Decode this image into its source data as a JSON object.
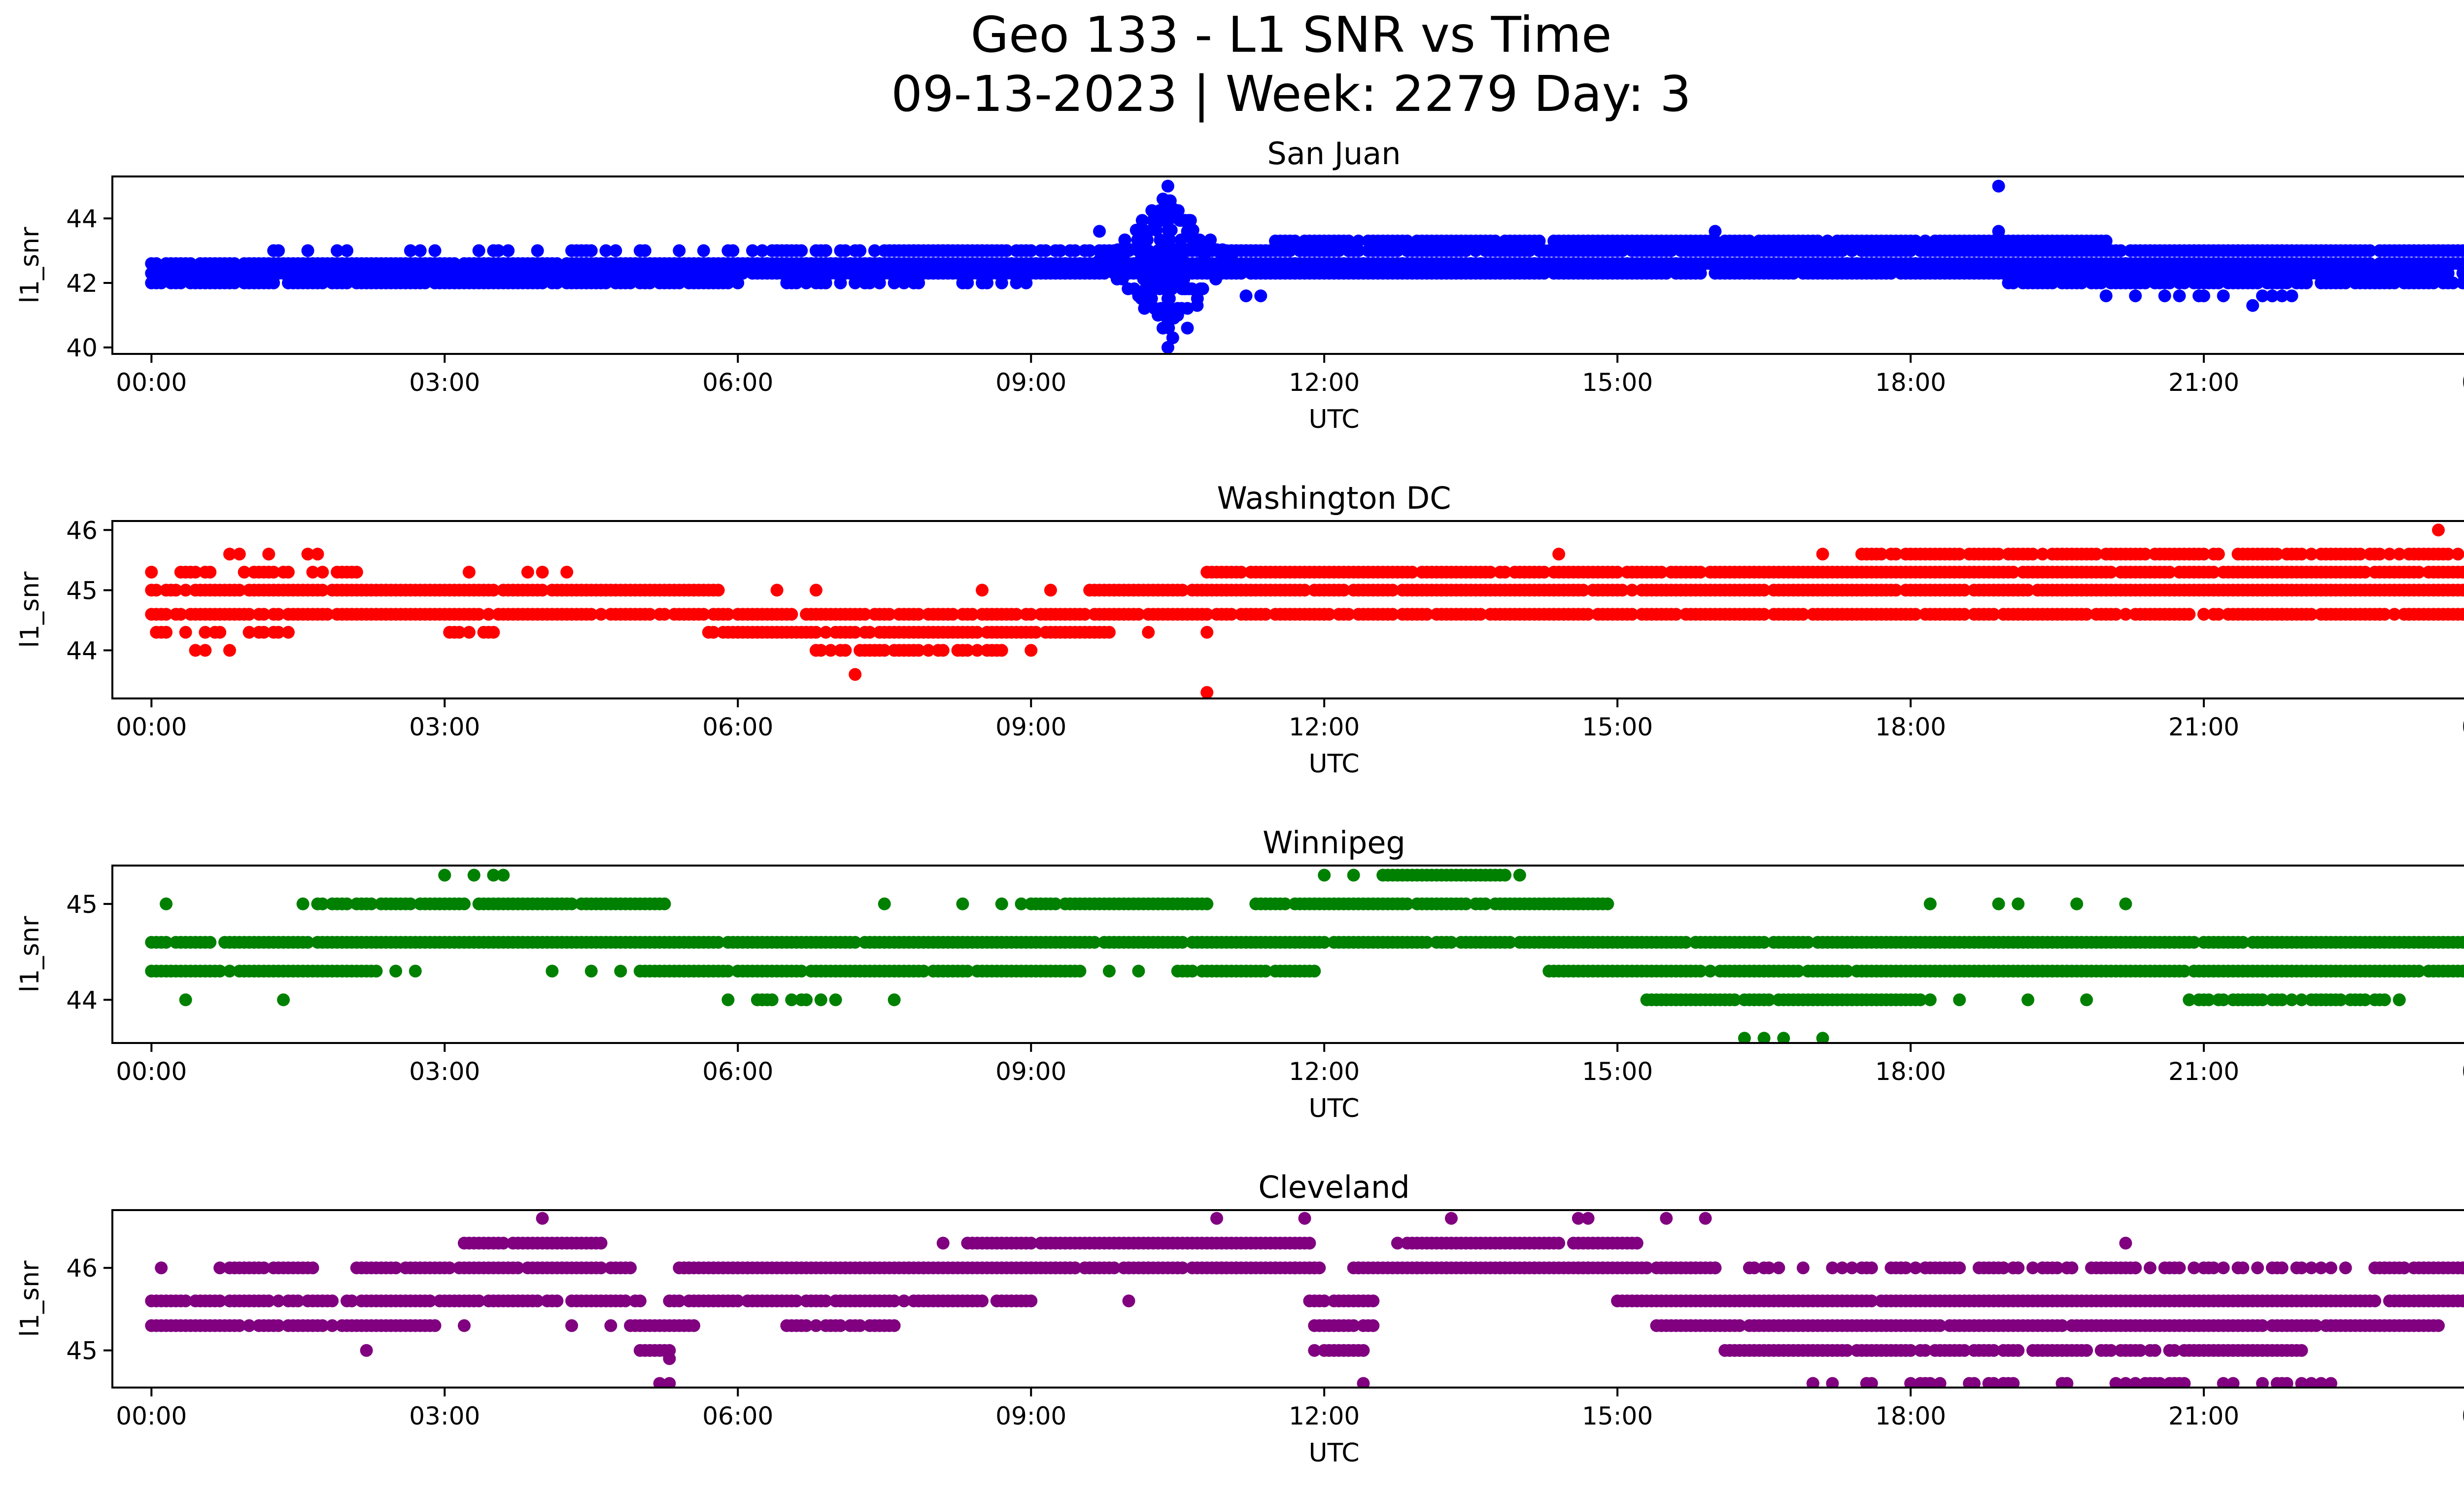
{
  "figure": {
    "title_line1": "Geo 133 - L1 SNR vs Time",
    "title_line2": "09-13-2023 | Week: 2279 Day: 3"
  },
  "chart_data": [
    {
      "type": "scatter",
      "title": "San Juan",
      "xlabel": "UTC",
      "ylabel": "l1_snr",
      "color": "#0000ff",
      "x_ticks": [
        "00:00",
        "03:00",
        "06:00",
        "09:00",
        "12:00",
        "15:00",
        "18:00",
        "21:00",
        "00:00"
      ],
      "xlim": [
        -0.4,
        24.6
      ],
      "ylim": [
        39.8,
        45.3
      ],
      "y_ticks": [
        40,
        42,
        44
      ],
      "bands": [
        {
          "level": 42.0,
          "from": 0.0,
          "to": 6.0,
          "density": 0.85
        },
        {
          "level": 42.3,
          "from": 0.0,
          "to": 24.0,
          "density": 0.95
        },
        {
          "level": 42.6,
          "from": 0.0,
          "to": 24.0,
          "density": 0.95
        },
        {
          "level": 43.0,
          "from": 1.0,
          "to": 8.5,
          "density": 0.25
        },
        {
          "level": 42.0,
          "from": 6.5,
          "to": 9.0,
          "density": 0.35
        },
        {
          "level": 43.0,
          "from": 6.2,
          "to": 11.5,
          "density": 0.8
        },
        {
          "level": 43.3,
          "from": 11.5,
          "to": 20.0,
          "density": 0.9
        },
        {
          "level": 43.0,
          "from": 11.0,
          "to": 24.0,
          "density": 0.95
        },
        {
          "level": 42.6,
          "from": 11.0,
          "to": 24.0,
          "density": 0.9
        },
        {
          "level": 42.0,
          "from": 19.0,
          "to": 24.0,
          "density": 0.85
        },
        {
          "level": 41.6,
          "from": 20.2,
          "to": 22.0,
          "density": 0.3
        },
        {
          "level": 43.3,
          "from": 23.8,
          "to": 24.0,
          "density": 0.9
        }
      ],
      "points": [
        {
          "x": 10.4,
          "y": 45.0
        },
        {
          "x": 10.35,
          "y": 44.6
        },
        {
          "x": 10.45,
          "y": 44.3
        },
        {
          "x": 10.3,
          "y": 44.0
        },
        {
          "x": 10.5,
          "y": 44.0
        },
        {
          "x": 10.2,
          "y": 43.6
        },
        {
          "x": 10.6,
          "y": 43.6
        },
        {
          "x": 9.7,
          "y": 43.6
        },
        {
          "x": 10.4,
          "y": 40.0
        },
        {
          "x": 10.45,
          "y": 40.3
        },
        {
          "x": 10.6,
          "y": 40.6
        },
        {
          "x": 10.35,
          "y": 40.6
        },
        {
          "x": 10.5,
          "y": 41.0
        },
        {
          "x": 10.3,
          "y": 41.0
        },
        {
          "x": 10.7,
          "y": 41.3
        },
        {
          "x": 10.2,
          "y": 41.3
        },
        {
          "x": 11.2,
          "y": 41.6
        },
        {
          "x": 11.35,
          "y": 41.6
        },
        {
          "x": 10.1,
          "y": 41.6
        },
        {
          "x": 18.9,
          "y": 45.0
        },
        {
          "x": 18.9,
          "y": 43.6
        },
        {
          "x": 16.0,
          "y": 43.6
        },
        {
          "x": 21.5,
          "y": 41.3
        },
        {
          "x": 21.7,
          "y": 41.6
        },
        {
          "x": 20.0,
          "y": 41.6
        }
      ],
      "burst": {
        "center": 10.4,
        "halfwidth": 0.75,
        "min": 40.3,
        "max": 44.3
      }
    },
    {
      "type": "scatter",
      "title": "Washington DC",
      "xlabel": "UTC",
      "ylabel": "l1_snr",
      "color": "#ff0000",
      "x_ticks": [
        "00:00",
        "03:00",
        "06:00",
        "09:00",
        "12:00",
        "15:00",
        "18:00",
        "21:00",
        "00:00"
      ],
      "xlim": [
        -0.4,
        24.6
      ],
      "ylim": [
        43.2,
        46.15
      ],
      "y_ticks": [
        44,
        45,
        46
      ],
      "bands": [
        {
          "level": 45.3,
          "from": 0.0,
          "to": 2.3,
          "density": 0.55
        },
        {
          "level": 45.0,
          "from": 0.0,
          "to": 5.8,
          "density": 0.95
        },
        {
          "level": 44.6,
          "from": 0.0,
          "to": 24.0,
          "density": 0.9
        },
        {
          "level": 44.3,
          "from": 0.0,
          "to": 1.5,
          "density": 0.3
        },
        {
          "level": 45.3,
          "from": 2.5,
          "to": 4.5,
          "density": 0.15
        },
        {
          "level": 44.3,
          "from": 5.7,
          "to": 9.8,
          "density": 0.95
        },
        {
          "level": 44.0,
          "from": 6.8,
          "to": 8.7,
          "density": 0.8
        },
        {
          "level": 45.0,
          "from": 9.6,
          "to": 24.0,
          "density": 0.95
        },
        {
          "level": 45.3,
          "from": 10.8,
          "to": 24.0,
          "density": 0.95
        },
        {
          "level": 45.6,
          "from": 17.5,
          "to": 23.6,
          "density": 0.85
        },
        {
          "level": 44.3,
          "from": 3.0,
          "to": 3.5,
          "density": 0.5
        }
      ],
      "points": [
        {
          "x": 0.8,
          "y": 45.6
        },
        {
          "x": 0.9,
          "y": 45.6
        },
        {
          "x": 1.2,
          "y": 45.6
        },
        {
          "x": 1.6,
          "y": 45.6
        },
        {
          "x": 1.7,
          "y": 45.6
        },
        {
          "x": 0.45,
          "y": 44.0
        },
        {
          "x": 0.55,
          "y": 44.0
        },
        {
          "x": 0.8,
          "y": 44.0
        },
        {
          "x": 7.2,
          "y": 43.6
        },
        {
          "x": 10.8,
          "y": 43.3
        },
        {
          "x": 14.4,
          "y": 45.6
        },
        {
          "x": 17.1,
          "y": 45.6
        },
        {
          "x": 23.4,
          "y": 46.0
        },
        {
          "x": 9.0,
          "y": 44.0
        },
        {
          "x": 6.4,
          "y": 45.0
        },
        {
          "x": 6.8,
          "y": 45.0
        },
        {
          "x": 8.5,
          "y": 45.0
        },
        {
          "x": 9.2,
          "y": 45.0
        },
        {
          "x": 10.2,
          "y": 44.3
        },
        {
          "x": 10.8,
          "y": 44.3
        },
        {
          "x": 21.0,
          "y": 44.6
        },
        {
          "x": 21.8,
          "y": 44.6
        },
        {
          "x": 22.8,
          "y": 44.6
        },
        {
          "x": 23.1,
          "y": 44.6
        }
      ]
    },
    {
      "type": "scatter",
      "title": "Winnipeg",
      "xlabel": "UTC",
      "ylabel": "l1_snr",
      "color": "#008000",
      "x_ticks": [
        "00:00",
        "03:00",
        "06:00",
        "09:00",
        "12:00",
        "15:00",
        "18:00",
        "21:00",
        "00:00"
      ],
      "xlim": [
        -0.4,
        24.6
      ],
      "ylim": [
        43.55,
        45.4
      ],
      "y_ticks": [
        44,
        45
      ],
      "bands": [
        {
          "level": 44.6,
          "from": 0.0,
          "to": 24.0,
          "density": 0.95
        },
        {
          "level": 44.3,
          "from": 0.0,
          "to": 2.3,
          "density": 0.95
        },
        {
          "level": 45.0,
          "from": 1.7,
          "to": 5.3,
          "density": 0.95
        },
        {
          "level": 44.3,
          "from": 5.0,
          "to": 9.5,
          "density": 0.95
        },
        {
          "level": 45.0,
          "from": 8.9,
          "to": 10.8,
          "density": 0.95
        },
        {
          "level": 44.3,
          "from": 10.5,
          "to": 11.9,
          "density": 0.95
        },
        {
          "level": 45.0,
          "from": 11.3,
          "to": 14.9,
          "density": 0.95
        },
        {
          "level": 45.3,
          "from": 12.6,
          "to": 13.9,
          "density": 0.95
        },
        {
          "level": 44.3,
          "from": 14.3,
          "to": 24.0,
          "density": 0.95
        },
        {
          "level": 44.0,
          "from": 15.3,
          "to": 18.2,
          "density": 0.95
        },
        {
          "level": 44.0,
          "from": 20.8,
          "to": 23.0,
          "density": 0.8
        },
        {
          "level": 44.0,
          "from": 6.2,
          "to": 7.0,
          "density": 0.6
        }
      ],
      "points": [
        {
          "x": 0.15,
          "y": 45.0
        },
        {
          "x": 0.35,
          "y": 44.0
        },
        {
          "x": 1.35,
          "y": 44.0
        },
        {
          "x": 1.55,
          "y": 45.0
        },
        {
          "x": 3.0,
          "y": 45.3
        },
        {
          "x": 3.3,
          "y": 45.3
        },
        {
          "x": 3.5,
          "y": 45.3
        },
        {
          "x": 3.6,
          "y": 45.3
        },
        {
          "x": 4.1,
          "y": 44.3
        },
        {
          "x": 4.5,
          "y": 44.3
        },
        {
          "x": 4.8,
          "y": 44.3
        },
        {
          "x": 7.5,
          "y": 45.0
        },
        {
          "x": 8.3,
          "y": 45.0
        },
        {
          "x": 8.7,
          "y": 45.0
        },
        {
          "x": 5.9,
          "y": 44.0
        },
        {
          "x": 7.6,
          "y": 44.0
        },
        {
          "x": 9.8,
          "y": 44.3
        },
        {
          "x": 10.1,
          "y": 44.3
        },
        {
          "x": 12.0,
          "y": 45.3
        },
        {
          "x": 12.3,
          "y": 45.3
        },
        {
          "x": 14.0,
          "y": 45.3
        },
        {
          "x": 16.3,
          "y": 43.6
        },
        {
          "x": 16.5,
          "y": 43.6
        },
        {
          "x": 16.7,
          "y": 43.6
        },
        {
          "x": 17.1,
          "y": 43.6
        },
        {
          "x": 18.2,
          "y": 45.0
        },
        {
          "x": 18.9,
          "y": 45.0
        },
        {
          "x": 19.1,
          "y": 45.0
        },
        {
          "x": 19.7,
          "y": 45.0
        },
        {
          "x": 20.2,
          "y": 45.0
        },
        {
          "x": 18.5,
          "y": 44.0
        },
        {
          "x": 19.2,
          "y": 44.0
        },
        {
          "x": 19.8,
          "y": 44.0
        },
        {
          "x": 23.0,
          "y": 44.0
        },
        {
          "x": 2.5,
          "y": 44.3
        },
        {
          "x": 2.7,
          "y": 44.3
        },
        {
          "x": 15.8,
          "y": 44.6
        },
        {
          "x": 16.0,
          "y": 44.6
        },
        {
          "x": 17.4,
          "y": 44.6
        }
      ]
    },
    {
      "type": "scatter",
      "title": "Cleveland",
      "xlabel": "UTC",
      "ylabel": "l1_snr",
      "color": "#800080",
      "x_ticks": [
        "00:00",
        "03:00",
        "06:00",
        "09:00",
        "12:00",
        "15:00",
        "18:00",
        "21:00",
        "00:00"
      ],
      "xlim": [
        -0.4,
        24.6
      ],
      "ylim": [
        44.55,
        46.7
      ],
      "y_ticks": [
        45,
        46
      ],
      "y_tick_values": [
        45.0,
        46.0
      ],
      "bands": [
        {
          "level": 45.6,
          "from": 0.0,
          "to": 5.0,
          "density": 0.9
        },
        {
          "level": 45.3,
          "from": 0.0,
          "to": 2.9,
          "density": 0.9
        },
        {
          "level": 46.0,
          "from": 0.7,
          "to": 1.7,
          "density": 0.9
        },
        {
          "level": 46.0,
          "from": 2.1,
          "to": 4.9,
          "density": 0.95
        },
        {
          "level": 46.3,
          "from": 3.2,
          "to": 4.6,
          "density": 0.9
        },
        {
          "level": 46.0,
          "from": 5.4,
          "to": 24.0,
          "density": 0.3
        },
        {
          "level": 46.0,
          "from": 5.4,
          "to": 11.9,
          "density": 0.95
        },
        {
          "level": 45.6,
          "from": 5.3,
          "to": 9.0,
          "density": 0.95
        },
        {
          "level": 46.3,
          "from": 8.3,
          "to": 11.9,
          "density": 0.95
        },
        {
          "level": 45.3,
          "from": 6.5,
          "to": 7.6,
          "density": 0.9
        },
        {
          "level": 45.3,
          "from": 4.9,
          "to": 5.6,
          "density": 0.9
        },
        {
          "level": 45.0,
          "from": 5.0,
          "to": 5.3,
          "density": 0.9
        },
        {
          "level": 46.0,
          "from": 12.3,
          "to": 16.0,
          "density": 0.95
        },
        {
          "level": 46.3,
          "from": 12.7,
          "to": 15.2,
          "density": 0.95
        },
        {
          "level": 45.6,
          "from": 11.8,
          "to": 12.5,
          "density": 0.9
        },
        {
          "level": 45.3,
          "from": 11.9,
          "to": 12.5,
          "density": 0.9
        },
        {
          "level": 45.0,
          "from": 11.9,
          "to": 12.4,
          "density": 0.9
        },
        {
          "level": 45.6,
          "from": 15.0,
          "to": 24.0,
          "density": 0.95
        },
        {
          "level": 45.3,
          "from": 15.4,
          "to": 23.4,
          "density": 0.95
        },
        {
          "level": 45.0,
          "from": 16.1,
          "to": 22.0,
          "density": 0.85
        },
        {
          "level": 46.0,
          "from": 22.8,
          "to": 24.0,
          "density": 0.95
        },
        {
          "level": 46.0,
          "from": 17.8,
          "to": 20.0,
          "density": 0.6
        },
        {
          "level": 44.6,
          "from": 17.0,
          "to": 22.2,
          "density": 0.25
        }
      ],
      "points": [
        {
          "x": 0.1,
          "y": 46.0
        },
        {
          "x": 2.2,
          "y": 45.0
        },
        {
          "x": 3.2,
          "y": 45.3
        },
        {
          "x": 4.0,
          "y": 46.6
        },
        {
          "x": 4.3,
          "y": 45.3
        },
        {
          "x": 4.7,
          "y": 45.3
        },
        {
          "x": 5.2,
          "y": 44.6
        },
        {
          "x": 5.3,
          "y": 44.6
        },
        {
          "x": 5.3,
          "y": 44.9
        },
        {
          "x": 8.1,
          "y": 46.3
        },
        {
          "x": 10.0,
          "y": 45.6
        },
        {
          "x": 10.9,
          "y": 46.6
        },
        {
          "x": 11.8,
          "y": 46.6
        },
        {
          "x": 12.4,
          "y": 44.6
        },
        {
          "x": 13.3,
          "y": 46.6
        },
        {
          "x": 14.6,
          "y": 46.6
        },
        {
          "x": 14.7,
          "y": 46.6
        },
        {
          "x": 15.5,
          "y": 46.6
        },
        {
          "x": 15.9,
          "y": 46.6
        },
        {
          "x": 16.5,
          "y": 46.0
        },
        {
          "x": 17.0,
          "y": 44.6
        },
        {
          "x": 17.6,
          "y": 44.6
        },
        {
          "x": 18.0,
          "y": 44.6
        },
        {
          "x": 18.3,
          "y": 44.6
        },
        {
          "x": 19.0,
          "y": 44.6
        },
        {
          "x": 20.2,
          "y": 46.3
        },
        {
          "x": 20.4,
          "y": 44.6
        },
        {
          "x": 20.8,
          "y": 44.6
        },
        {
          "x": 21.3,
          "y": 44.6
        },
        {
          "x": 21.8,
          "y": 44.6
        },
        {
          "x": 22.0,
          "y": 44.6
        },
        {
          "x": 22.3,
          "y": 44.6
        },
        {
          "x": 20.3,
          "y": 46.0
        },
        {
          "x": 21.0,
          "y": 46.0
        },
        {
          "x": 11.7,
          "y": 46.0
        }
      ]
    }
  ]
}
